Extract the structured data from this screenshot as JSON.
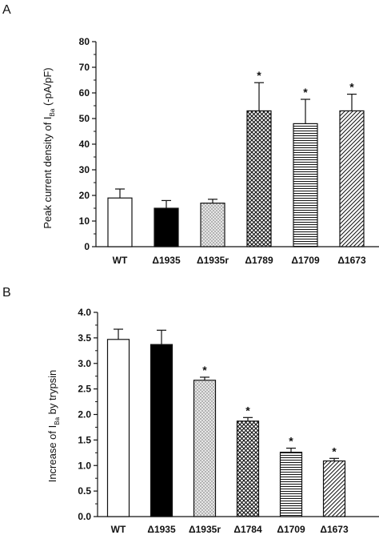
{
  "chart_data": [
    {
      "type": "bar",
      "panel_letter": "A",
      "ylabel_main": "Peak current density of I",
      "ylabel_sub": "Ba",
      "ylabel_tail": " (-pA/pF)",
      "ylim": [
        0,
        80
      ],
      "yticks": [
        "0",
        "10",
        "20",
        "30",
        "40",
        "50",
        "60",
        "70",
        "80"
      ],
      "categories": [
        "WT",
        "Δ1935",
        "Δ1935r",
        "Δ1789",
        "Δ1709",
        "Δ1673"
      ],
      "values": [
        19,
        15,
        17,
        53,
        48,
        53
      ],
      "errors": [
        3.5,
        3,
        1.5,
        11,
        9.5,
        6.5
      ],
      "significant": [
        false,
        false,
        false,
        true,
        true,
        true
      ],
      "star_symbol": "*"
    },
    {
      "type": "bar",
      "panel_letter": "B",
      "ylabel_main": "Increase of I",
      "ylabel_sub": "Ba",
      "ylabel_tail": " by trypsin",
      "ylim": [
        0,
        4.0
      ],
      "yticks": [
        "0.0",
        "0.5",
        "1.0",
        "1.5",
        "2.0",
        "2.5",
        "3.0",
        "3.5",
        "4.0"
      ],
      "categories": [
        "WT",
        "Δ1935",
        "Δ1935r",
        "Δ1784",
        "Δ1709",
        "Δ1673"
      ],
      "values": [
        3.47,
        3.37,
        2.67,
        1.87,
        1.26,
        1.09
      ],
      "errors": [
        0.2,
        0.28,
        0.06,
        0.07,
        0.08,
        0.05
      ],
      "significant": [
        false,
        false,
        true,
        true,
        true,
        true
      ],
      "star_symbol": "*"
    }
  ]
}
